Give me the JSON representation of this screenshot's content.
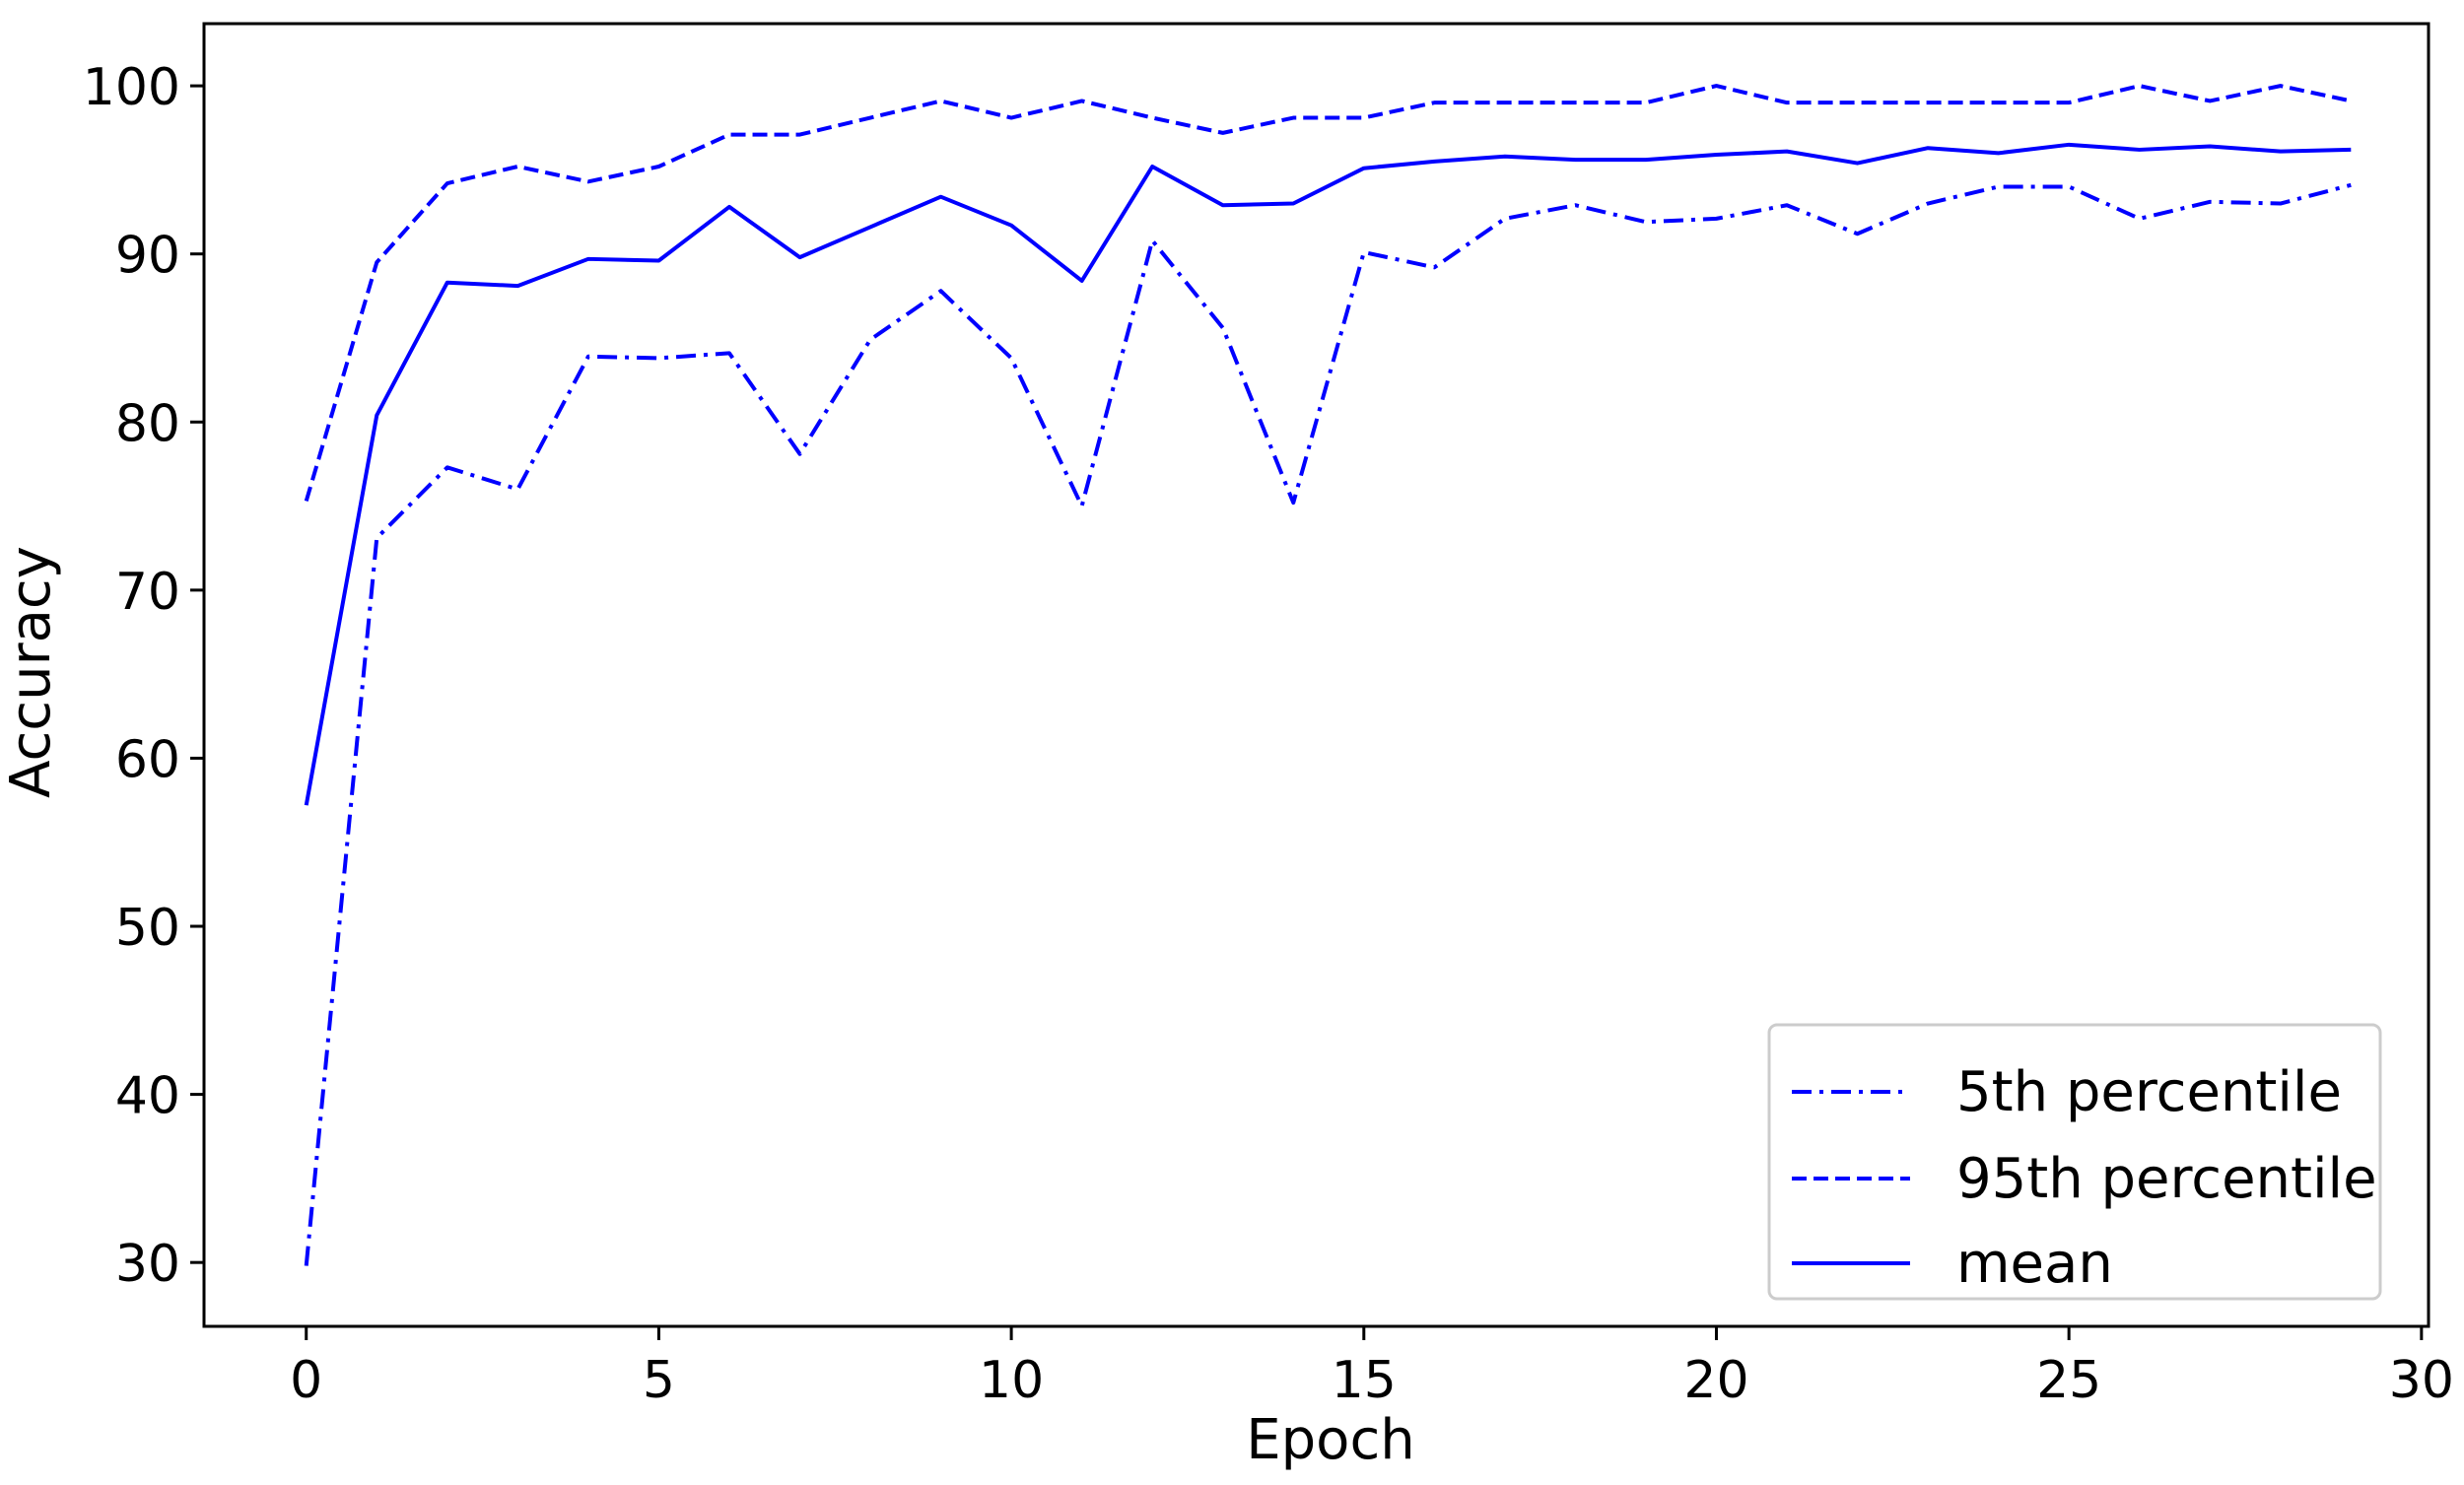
{
  "chart_data": {
    "type": "line",
    "title": "",
    "xlabel": "Epoch",
    "ylabel": "Accuracy",
    "xlim": [
      -1.45,
      30.1
    ],
    "ylim": [
      26.2,
      103.7
    ],
    "xticks": [
      0,
      5,
      10,
      15,
      20,
      25,
      30
    ],
    "yticks": [
      30,
      40,
      50,
      60,
      70,
      80,
      90,
      100
    ],
    "grid": false,
    "legend_position": "lower right",
    "x": [
      0,
      1,
      2,
      3,
      4,
      5,
      6,
      7,
      8,
      9,
      10,
      11,
      12,
      13,
      14,
      15,
      16,
      17,
      18,
      19,
      20,
      21,
      22,
      23,
      24,
      25,
      26,
      27,
      28,
      29
    ],
    "series": [
      {
        "name": "5th percentile",
        "style": "dashdot",
        "color": "#0000ff",
        "values": [
          29.8,
          73.1,
          77.3,
          76.0,
          83.9,
          83.8,
          84.1,
          78.1,
          84.9,
          87.8,
          83.8,
          75.0,
          90.8,
          85.6,
          75.2,
          90.1,
          89.2,
          92.1,
          92.9,
          91.9,
          92.1,
          92.9,
          91.2,
          93.0,
          94.0,
          94.0,
          92.1,
          93.1,
          93.0,
          94.1
        ]
      },
      {
        "name": "95th percentile",
        "style": "dashed",
        "color": "#0000ff",
        "values": [
          75.3,
          89.5,
          94.2,
          95.2,
          94.3,
          95.2,
          97.1,
          97.1,
          98.1,
          99.1,
          98.1,
          99.1,
          98.1,
          97.2,
          98.1,
          98.1,
          99.0,
          99.0,
          99.0,
          99.0,
          100.0,
          99.0,
          99.0,
          99.0,
          99.0,
          99.0,
          100.0,
          99.1,
          100.0,
          99.1
        ]
      },
      {
        "name": "mean",
        "style": "solid",
        "color": "#0000ff",
        "values": [
          57.2,
          80.4,
          88.3,
          88.1,
          89.7,
          89.6,
          92.8,
          89.8,
          91.6,
          93.4,
          91.7,
          88.4,
          95.2,
          92.9,
          93.0,
          95.1,
          95.5,
          95.8,
          95.6,
          95.6,
          95.9,
          96.1,
          95.4,
          96.3,
          96.0,
          96.5,
          96.2,
          96.4,
          96.1,
          96.2
        ]
      }
    ]
  },
  "axes": {
    "xlabel": "Epoch",
    "ylabel": "Accuracy",
    "xtick_labels": [
      "0",
      "5",
      "10",
      "15",
      "20",
      "25",
      "30"
    ],
    "ytick_labels": [
      "30",
      "40",
      "50",
      "60",
      "70",
      "80",
      "90",
      "100"
    ]
  },
  "legend": {
    "items": [
      {
        "label": "5th percentile",
        "style": "dashdot"
      },
      {
        "label": "95th percentile",
        "style": "dashed"
      },
      {
        "label": "mean",
        "style": "solid"
      }
    ]
  },
  "colors": {
    "line": "#0000ff",
    "axis": "#000000",
    "legend_border": "#cccccc"
  }
}
